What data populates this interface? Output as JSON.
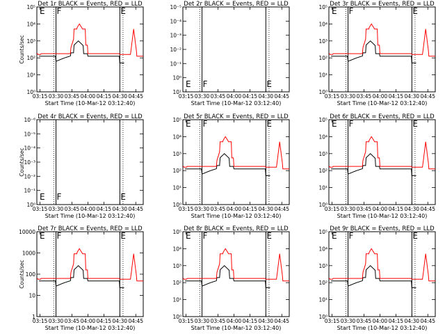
{
  "chart_data": [
    {
      "type": "line",
      "title": "Det 1r BLACK = Events, RED = LLD",
      "xlabel": "Start Time (10-Mar-12 03:12:40)",
      "ylabel": "Counts/sec",
      "x_ticks": [
        "03:15",
        "03:30",
        "03:45",
        "04:00",
        "04:15",
        "04:30",
        "04:45"
      ],
      "y_ticks": [
        "10⁰",
        "10¹",
        "10²",
        "10³",
        "10⁴",
        "10⁵"
      ],
      "ylog": [
        0,
        5
      ],
      "markers": [
        {
          "label": "E",
          "x": "03:14"
        },
        {
          "label": "F",
          "x": "03:30"
        },
        {
          "label": "E",
          "x": "04:30"
        }
      ],
      "has_data": true,
      "series": [
        {
          "name": "Events",
          "color": "#000000"
        },
        {
          "name": "LLD",
          "color": "#ff0000"
        }
      ]
    },
    {
      "type": "line",
      "title": "Det 2r BLACK = Events, RED = LLD",
      "xlabel": "Start Time (10-Mar-12 03:12:40)",
      "ylabel": "",
      "x_ticks": [
        "03:15",
        "03:30",
        "03:45",
        "04:00",
        "04:15",
        "04:30",
        "04:45"
      ],
      "y_ticks": [
        "10¹",
        "10⁰",
        "10⁻¹",
        "10⁻²",
        "10⁻³",
        "10⁻⁴",
        "10⁻⁵"
      ],
      "ylog": [
        1,
        -5
      ],
      "markers": [
        {
          "label": "E",
          "x": "03:14"
        },
        {
          "label": "F",
          "x": "03:30"
        },
        {
          "label": "E",
          "x": "04:30"
        }
      ],
      "has_data": false,
      "series": [
        {
          "name": "Events",
          "color": "#000000"
        },
        {
          "name": "LLD",
          "color": "#ff0000"
        }
      ]
    },
    {
      "type": "line",
      "title": "Det 3r BLACK = Events, RED = LLD",
      "xlabel": "Start Time (10-Mar-12 03:12:40)",
      "ylabel": "",
      "x_ticks": [
        "03:15",
        "03:30",
        "03:45",
        "04:00",
        "04:15",
        "04:30",
        "04:45"
      ],
      "y_ticks": [
        "10⁰",
        "10¹",
        "10²",
        "10³",
        "10⁴",
        "10⁵"
      ],
      "ylog": [
        0,
        5
      ],
      "markers": [
        {
          "label": "E",
          "x": "03:14"
        },
        {
          "label": "F",
          "x": "03:30"
        },
        {
          "label": "E",
          "x": "04:30"
        }
      ],
      "has_data": true,
      "series": [
        {
          "name": "Events",
          "color": "#000000"
        },
        {
          "name": "LLD",
          "color": "#ff0000"
        }
      ]
    },
    {
      "type": "line",
      "title": "Det 4r BLACK = Events, RED = LLD",
      "xlabel": "Start Time (10-Mar-12 03:12:40)",
      "ylabel": "Counts/sec",
      "x_ticks": [
        "03:15",
        "03:30",
        "03:45",
        "04:00",
        "04:15",
        "04:30",
        "04:45"
      ],
      "y_ticks": [
        "10⁰",
        "10⁻¹",
        "10⁻²",
        "10⁻³",
        "10⁻⁴",
        "10⁻⁵",
        "10⁻⁶"
      ],
      "ylog": [
        0,
        -6
      ],
      "markers": [
        {
          "label": "E",
          "x": "03:14"
        },
        {
          "label": "F",
          "x": "03:30"
        },
        {
          "label": "E",
          "x": "04:30"
        }
      ],
      "has_data": false,
      "series": [
        {
          "name": "Events",
          "color": "#000000"
        },
        {
          "name": "LLD",
          "color": "#ff0000"
        }
      ]
    },
    {
      "type": "line",
      "title": "Det 5r BLACK = Events, RED = LLD",
      "xlabel": "Start Time (10-Mar-12 03:12:40)",
      "ylabel": "",
      "x_ticks": [
        "03:15",
        "03:30",
        "03:45",
        "04:00",
        "04:15",
        "04:30",
        "04:45"
      ],
      "y_ticks": [
        "10⁰",
        "10¹",
        "10²",
        "10³",
        "10⁴",
        "10⁵"
      ],
      "ylog": [
        0,
        5
      ],
      "markers": [
        {
          "label": "E",
          "x": "03:14"
        },
        {
          "label": "F",
          "x": "03:30"
        },
        {
          "label": "E",
          "x": "04:30"
        }
      ],
      "has_data": true,
      "series": [
        {
          "name": "Events",
          "color": "#000000"
        },
        {
          "name": "LLD",
          "color": "#ff0000"
        }
      ]
    },
    {
      "type": "line",
      "title": "Det 6r BLACK = Events, RED = LLD",
      "xlabel": "Start Time (10-Mar-12 03:12:40)",
      "ylabel": "",
      "x_ticks": [
        "03:15",
        "03:30",
        "03:45",
        "04:00",
        "04:15",
        "04:30",
        "04:45"
      ],
      "y_ticks": [
        "10⁰",
        "10¹",
        "10²",
        "10³",
        "10⁴",
        "10⁵"
      ],
      "ylog": [
        0,
        5
      ],
      "markers": [
        {
          "label": "E",
          "x": "03:14"
        },
        {
          "label": "F",
          "x": "03:30"
        },
        {
          "label": "E",
          "x": "04:30"
        }
      ],
      "has_data": true,
      "series": [
        {
          "name": "Events",
          "color": "#000000"
        },
        {
          "name": "LLD",
          "color": "#ff0000"
        }
      ]
    },
    {
      "type": "line",
      "title": "Det 7r BLACK = Events, RED = LLD",
      "xlabel": "Start Time (10-Mar-12 03:12:40)",
      "ylabel": "Counts/sec",
      "x_ticks": [
        "03:15",
        "03:30",
        "03:45",
        "04:00",
        "04:15",
        "04:30",
        "04:45"
      ],
      "y_ticks": [
        "1",
        "10",
        "100",
        "1000",
        "10000"
      ],
      "ylog": [
        0,
        4
      ],
      "markers": [
        {
          "label": "E",
          "x": "03:14"
        },
        {
          "label": "F",
          "x": "03:30"
        },
        {
          "label": "E",
          "x": "04:30"
        }
      ],
      "has_data": true,
      "series": [
        {
          "name": "Events",
          "color": "#000000"
        },
        {
          "name": "LLD",
          "color": "#ff0000"
        }
      ]
    },
    {
      "type": "line",
      "title": "Det 8r BLACK = Events, RED = LLD",
      "xlabel": "Start Time (10-Mar-12 03:12:40)",
      "ylabel": "",
      "x_ticks": [
        "03:15",
        "03:30",
        "03:45",
        "04:00",
        "04:15",
        "04:30",
        "04:45"
      ],
      "y_ticks": [
        "10⁰",
        "10¹",
        "10²",
        "10³",
        "10⁴",
        "10⁵"
      ],
      "ylog": [
        0,
        5
      ],
      "markers": [
        {
          "label": "E",
          "x": "03:14"
        },
        {
          "label": "F",
          "x": "03:30"
        },
        {
          "label": "E",
          "x": "04:30"
        }
      ],
      "has_data": true,
      "series": [
        {
          "name": "Events",
          "color": "#000000"
        },
        {
          "name": "LLD",
          "color": "#ff0000"
        }
      ]
    },
    {
      "type": "line",
      "title": "Det 9r BLACK = Events, RED = LLD",
      "xlabel": "Start Time (10-Mar-12 03:12:40)",
      "ylabel": "",
      "x_ticks": [
        "03:15",
        "03:30",
        "03:45",
        "04:00",
        "04:15",
        "04:30",
        "04:45"
      ],
      "y_ticks": [
        "10⁰",
        "10¹",
        "10²",
        "10³",
        "10⁴",
        "10⁵"
      ],
      "ylog": [
        0,
        5
      ],
      "markers": [
        {
          "label": "E",
          "x": "03:14"
        },
        {
          "label": "F",
          "x": "03:30"
        },
        {
          "label": "E",
          "x": "04:30"
        }
      ],
      "has_data": true,
      "series": [
        {
          "name": "Events",
          "color": "#000000"
        },
        {
          "name": "LLD",
          "color": "#ff0000"
        }
      ]
    }
  ]
}
